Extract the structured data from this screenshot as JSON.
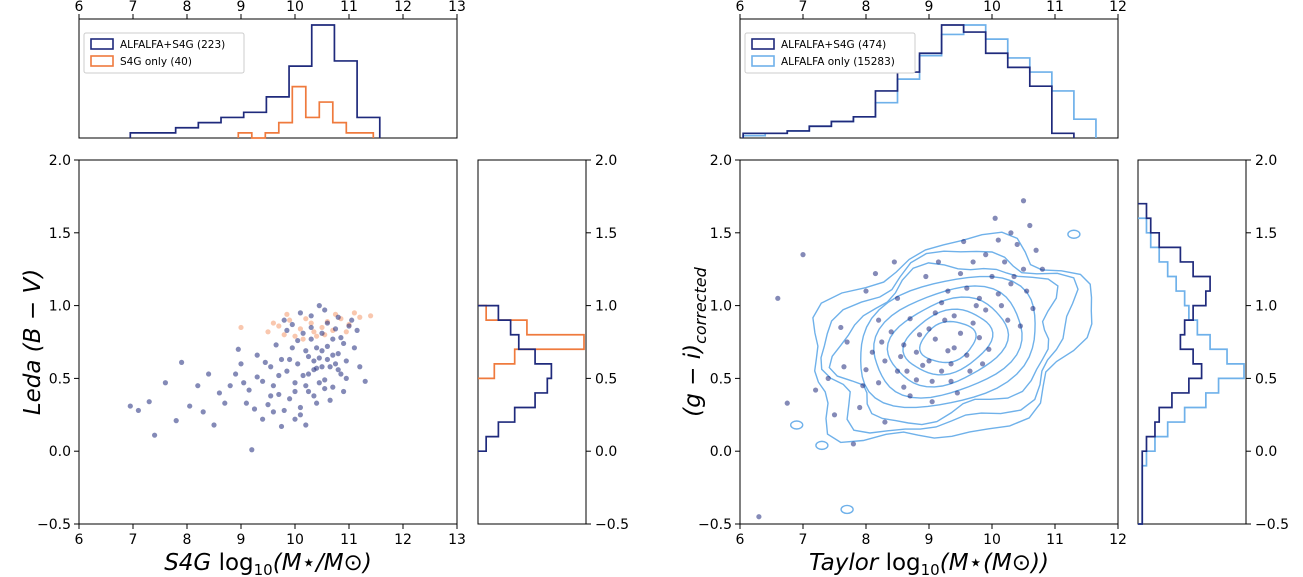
{
  "chart_data": [
    {
      "type": "scatter",
      "panel": "left",
      "xlabel": "S4G log10(M⋆/M⊙)",
      "xlabel_parts": {
        "survey": "S4G",
        "log": "log",
        "sub": "10",
        "arg": "(M⋆/M⊙)"
      },
      "ylabel": "Leda (B − V)",
      "ylabel_parts": {
        "survey": "Leda",
        "arg": "(B − V)"
      },
      "xlim": [
        6,
        13
      ],
      "ylim": [
        -0.5,
        2.0
      ],
      "xticks": [
        "6",
        "7",
        "8",
        "9",
        "10",
        "11",
        "12",
        "13"
      ],
      "yticks": [
        "−0.5",
        "0.0",
        "0.5",
        "1.0",
        "1.5",
        "2.0"
      ],
      "legend": {
        "placement": "top-left",
        "entries": [
          "ALFALFA+S4G (223)",
          "S4G only (40)"
        ]
      },
      "colors": {
        "matched": "#1f2a7c",
        "only": "#ef7a3d",
        "only_points": "#f7b99a"
      },
      "scatter_matched": [
        [
          6.95,
          0.31
        ],
        [
          7.1,
          0.28
        ],
        [
          7.3,
          0.34
        ],
        [
          7.4,
          0.11
        ],
        [
          7.6,
          0.47
        ],
        [
          7.8,
          0.21
        ],
        [
          7.9,
          0.61
        ],
        [
          8.05,
          0.31
        ],
        [
          8.2,
          0.45
        ],
        [
          8.3,
          0.27
        ],
        [
          8.4,
          0.53
        ],
        [
          8.5,
          0.18
        ],
        [
          8.6,
          0.4
        ],
        [
          8.8,
          0.45
        ],
        [
          8.95,
          0.7
        ],
        [
          9.05,
          0.47
        ],
        [
          9.1,
          0.33
        ],
        [
          9.2,
          0.01
        ],
        [
          9.3,
          0.51
        ],
        [
          9.4,
          0.22
        ],
        [
          9.5,
          0.32
        ],
        [
          9.55,
          0.58
        ],
        [
          9.6,
          0.45
        ],
        [
          9.7,
          0.39
        ],
        [
          9.75,
          0.63
        ],
        [
          9.8,
          0.28
        ],
        [
          9.85,
          0.55
        ],
        [
          9.9,
          0.36
        ],
        [
          9.95,
          0.71
        ],
        [
          10.0,
          0.47
        ],
        [
          10.05,
          0.6
        ],
        [
          10.1,
          0.3
        ],
        [
          10.15,
          0.52
        ],
        [
          10.2,
          0.69
        ],
        [
          10.25,
          0.41
        ],
        [
          10.3,
          0.77
        ],
        [
          10.35,
          0.56
        ],
        [
          10.4,
          0.33
        ],
        [
          10.45,
          0.64
        ],
        [
          10.5,
          0.81
        ],
        [
          10.55,
          0.49
        ],
        [
          10.6,
          0.72
        ],
        [
          10.65,
          0.58
        ],
        [
          10.7,
          0.44
        ],
        [
          10.75,
          0.84
        ],
        [
          10.8,
          0.67
        ],
        [
          10.85,
          0.53
        ],
        [
          10.9,
          0.74
        ],
        [
          10.95,
          0.62
        ],
        [
          11.0,
          0.86
        ],
        [
          11.1,
          0.71
        ],
        [
          11.2,
          0.58
        ],
        [
          11.3,
          0.48
        ],
        [
          10.3,
          0.93
        ],
        [
          10.45,
          1.0
        ],
        [
          10.6,
          0.88
        ],
        [
          9.95,
          0.87
        ],
        [
          10.15,
          0.81
        ],
        [
          10.7,
          0.77
        ],
        [
          10.25,
          0.65
        ],
        [
          10.4,
          0.57
        ],
        [
          10.55,
          0.43
        ],
        [
          10.1,
          0.25
        ],
        [
          9.65,
          0.73
        ],
        [
          9.85,
          0.83
        ],
        [
          10.35,
          0.38
        ],
        [
          10.8,
          0.92
        ],
        [
          10.9,
          0.41
        ],
        [
          11.05,
          0.9
        ],
        [
          9.45,
          0.61
        ],
        [
          9.7,
          0.52
        ],
        [
          10.0,
          0.22
        ],
        [
          10.2,
          0.18
        ],
        [
          9.3,
          0.66
        ],
        [
          9.6,
          0.27
        ],
        [
          10.65,
          0.35
        ],
        [
          10.5,
          0.69
        ],
        [
          10.3,
          0.85
        ],
        [
          10.75,
          0.6
        ],
        [
          10.85,
          0.78
        ],
        [
          10.95,
          0.5
        ],
        [
          9.9,
          0.63
        ],
        [
          10.05,
          0.76
        ],
        [
          10.4,
          0.71
        ],
        [
          10.6,
          0.63
        ],
        [
          10.2,
          0.45
        ],
        [
          9.55,
          0.38
        ],
        [
          9.75,
          0.17
        ],
        [
          8.7,
          0.33
        ],
        [
          8.9,
          0.53
        ],
        [
          9.0,
          0.6
        ],
        [
          9.15,
          0.42
        ],
        [
          9.25,
          0.29
        ],
        [
          9.4,
          0.48
        ],
        [
          9.8,
          0.9
        ],
        [
          10.1,
          0.95
        ],
        [
          10.55,
          0.97
        ],
        [
          10.25,
          0.53
        ],
        [
          10.45,
          0.47
        ],
        [
          10.7,
          0.66
        ],
        [
          10.8,
          0.56
        ],
        [
          11.15,
          0.83
        ],
        [
          10.0,
          0.41
        ],
        [
          10.35,
          0.62
        ],
        [
          10.5,
          0.58
        ]
      ],
      "scatter_only": [
        [
          9.0,
          0.85
        ],
        [
          9.5,
          0.82
        ],
        [
          9.8,
          0.8
        ],
        [
          9.9,
          0.9
        ],
        [
          10.1,
          0.84
        ],
        [
          10.3,
          0.88
        ],
        [
          10.5,
          0.85
        ],
        [
          10.6,
          0.89
        ],
        [
          10.7,
          0.83
        ],
        [
          10.85,
          0.91
        ],
        [
          11.0,
          0.87
        ],
        [
          11.2,
          0.92
        ],
        [
          11.4,
          0.93
        ],
        [
          10.4,
          0.79
        ],
        [
          10.2,
          0.91
        ],
        [
          9.7,
          0.86
        ],
        [
          10.0,
          0.79
        ],
        [
          10.55,
          0.8
        ],
        [
          10.95,
          0.82
        ],
        [
          11.1,
          0.95
        ],
        [
          9.6,
          0.88
        ],
        [
          10.75,
          0.94
        ],
        [
          10.35,
          0.82
        ],
        [
          10.15,
          0.77
        ],
        [
          9.85,
          0.94
        ]
      ],
      "hist_top": {
        "edges": [
          6.95,
          7.37,
          7.79,
          8.21,
          8.63,
          9.05,
          9.47,
          9.89,
          10.31,
          10.73,
          11.15,
          11.57
        ],
        "matched": [
          1,
          1,
          2,
          3,
          4,
          5,
          8,
          14,
          22,
          15,
          4
        ],
        "only_edges": [
          8.95,
          9.2,
          9.45,
          9.7,
          9.95,
          10.2,
          10.45,
          10.7,
          10.95,
          11.2,
          11.45
        ],
        "only": [
          1,
          0,
          1,
          3,
          10,
          4,
          7,
          3,
          1,
          1
        ]
      },
      "hist_right": {
        "edges": [
          0.0,
          0.1,
          0.2,
          0.3,
          0.4,
          0.5,
          0.6,
          0.7,
          0.8,
          0.9,
          1.0
        ],
        "matched": [
          2,
          5,
          9,
          14,
          17,
          18,
          14,
          10,
          8,
          5
        ],
        "only_edges": [
          0.5,
          0.6,
          0.7,
          0.8,
          0.9,
          1.0
        ],
        "only": [
          4,
          9,
          26,
          12,
          2
        ]
      }
    },
    {
      "type": "scatter",
      "panel": "right",
      "xlabel": "Taylor log10(M⋆(M⊙))",
      "xlabel_parts": {
        "survey": "Taylor",
        "log": "log",
        "sub": "10",
        "arg": "(M⋆(M⊙))"
      },
      "ylabel": "(g − i)corrected",
      "ylabel_parts": {
        "arg": "(g − i)",
        "sub": "corrected"
      },
      "xlim": [
        6,
        12
      ],
      "ylim": [
        -0.5,
        2.0
      ],
      "xticks": [
        "6",
        "7",
        "8",
        "9",
        "10",
        "11",
        "12"
      ],
      "yticks": [
        "−0.5",
        "0.0",
        "0.5",
        "1.0",
        "1.5",
        "2.0"
      ],
      "legend": {
        "placement": "top-left",
        "entries": [
          "ALFALFA+S4G (474)",
          "ALFALFA only (15283)"
        ]
      },
      "colors": {
        "matched": "#1f2a7c",
        "only": "#6fb1ea"
      },
      "contour_center": [
        9.3,
        0.75
      ],
      "scatter_matched": [
        [
          6.3,
          -0.45
        ],
        [
          6.75,
          0.33
        ],
        [
          7.0,
          1.35
        ],
        [
          7.5,
          0.25
        ],
        [
          7.8,
          0.05
        ],
        [
          8.0,
          0.56
        ],
        [
          8.1,
          0.68
        ],
        [
          8.2,
          0.47
        ],
        [
          8.3,
          0.62
        ],
        [
          8.4,
          0.82
        ],
        [
          8.5,
          0.55
        ],
        [
          8.6,
          0.73
        ],
        [
          8.7,
          0.91
        ],
        [
          8.8,
          0.68
        ],
        [
          8.9,
          0.59
        ],
        [
          9.0,
          0.84
        ],
        [
          9.1,
          0.77
        ],
        [
          9.2,
          1.02
        ],
        [
          9.3,
          0.69
        ],
        [
          9.4,
          0.93
        ],
        [
          9.5,
          0.81
        ],
        [
          9.6,
          1.12
        ],
        [
          9.7,
          0.88
        ],
        [
          9.8,
          1.05
        ],
        [
          9.9,
          0.97
        ],
        [
          10.0,
          1.2
        ],
        [
          10.1,
          1.08
        ],
        [
          10.2,
          1.3
        ],
        [
          10.3,
          1.15
        ],
        [
          10.4,
          1.42
        ],
        [
          10.5,
          1.25
        ],
        [
          10.6,
          1.55
        ],
        [
          10.7,
          1.38
        ],
        [
          9.0,
          0.62
        ],
        [
          9.2,
          0.55
        ],
        [
          9.4,
          0.71
        ],
        [
          9.6,
          0.66
        ],
        [
          9.8,
          0.78
        ],
        [
          8.8,
          0.49
        ],
        [
          8.6,
          0.44
        ],
        [
          9.1,
          0.95
        ],
        [
          9.3,
          1.1
        ],
        [
          9.5,
          1.22
        ],
        [
          9.7,
          1.3
        ],
        [
          9.9,
          1.35
        ],
        [
          10.1,
          1.45
        ],
        [
          10.3,
          1.5
        ],
        [
          8.5,
          1.05
        ],
        [
          8.2,
          0.9
        ],
        [
          8.0,
          1.1
        ],
        [
          7.7,
          0.75
        ],
        [
          7.4,
          0.5
        ],
        [
          7.2,
          0.42
        ],
        [
          7.9,
          0.3
        ],
        [
          8.3,
          0.2
        ],
        [
          8.7,
          0.38
        ],
        [
          9.05,
          0.34
        ],
        [
          9.35,
          0.48
        ],
        [
          9.65,
          0.55
        ],
        [
          9.95,
          0.7
        ],
        [
          10.25,
          0.9
        ],
        [
          10.55,
          1.1
        ],
        [
          10.45,
          0.86
        ],
        [
          9.85,
          0.6
        ],
        [
          9.45,
          0.4
        ],
        [
          8.95,
          1.2
        ],
        [
          9.15,
          1.3
        ],
        [
          9.55,
          1.44
        ],
        [
          10.05,
          1.6
        ],
        [
          10.5,
          1.72
        ],
        [
          8.45,
          1.3
        ],
        [
          8.15,
          1.22
        ],
        [
          7.6,
          0.85
        ],
        [
          6.6,
          1.05
        ],
        [
          10.8,
          1.25
        ],
        [
          10.65,
          0.98
        ],
        [
          10.35,
          1.2
        ],
        [
          9.25,
          0.9
        ],
        [
          8.85,
          0.8
        ],
        [
          8.55,
          0.65
        ],
        [
          8.25,
          0.75
        ],
        [
          7.95,
          0.45
        ],
        [
          7.65,
          0.58
        ],
        [
          9.75,
          1.0
        ],
        [
          10.15,
          1.0
        ],
        [
          9.05,
          0.48
        ],
        [
          8.65,
          0.55
        ],
        [
          9.35,
          0.6
        ]
      ],
      "hist_top": {
        "edges": [
          6.05,
          6.4,
          6.75,
          7.1,
          7.45,
          7.8,
          8.15,
          8.5,
          8.85,
          9.2,
          9.55,
          9.9,
          10.25,
          10.6,
          10.95,
          11.3
        ],
        "matched": [
          2,
          2,
          3,
          5,
          7,
          9,
          20,
          28,
          36,
          48,
          45,
          36,
          30,
          22,
          2
        ],
        "only_edges": [
          6.05,
          6.4,
          6.75,
          7.1,
          7.45,
          7.8,
          8.15,
          8.5,
          8.85,
          9.2,
          9.55,
          9.9,
          10.25,
          10.6,
          10.95,
          11.3,
          11.65
        ],
        "only": [
          1,
          2,
          3,
          5,
          7,
          9,
          15,
          25,
          35,
          44,
          48,
          42,
          34,
          28,
          20,
          8
        ]
      },
      "hist_right": {
        "edges": [
          -0.5,
          -0.4,
          -0.3,
          -0.2,
          -0.1,
          0.0,
          0.1,
          0.2,
          0.3,
          0.4,
          0.5,
          0.6,
          0.7,
          0.8,
          0.9,
          1.0,
          1.1,
          1.2,
          1.3,
          1.4,
          1.5,
          1.6,
          1.7
        ],
        "matched": [
          1,
          1,
          1,
          1,
          1,
          2,
          4,
          5,
          8,
          12,
          15,
          13,
          10,
          11,
          13,
          16,
          17,
          13,
          10,
          5,
          3,
          2
        ],
        "only_edges": [
          -0.5,
          -0.4,
          -0.3,
          -0.2,
          -0.1,
          0.0,
          0.1,
          0.2,
          0.3,
          0.4,
          0.5,
          0.6,
          0.7,
          0.8,
          0.9,
          1.0,
          1.1,
          1.2,
          1.3,
          1.4,
          1.5,
          1.6
        ],
        "only": [
          1,
          1,
          1,
          1,
          2,
          4,
          7,
          11,
          16,
          19,
          25,
          21,
          17,
          14,
          12,
          11,
          9,
          7,
          5,
          3,
          2
        ]
      }
    }
  ]
}
